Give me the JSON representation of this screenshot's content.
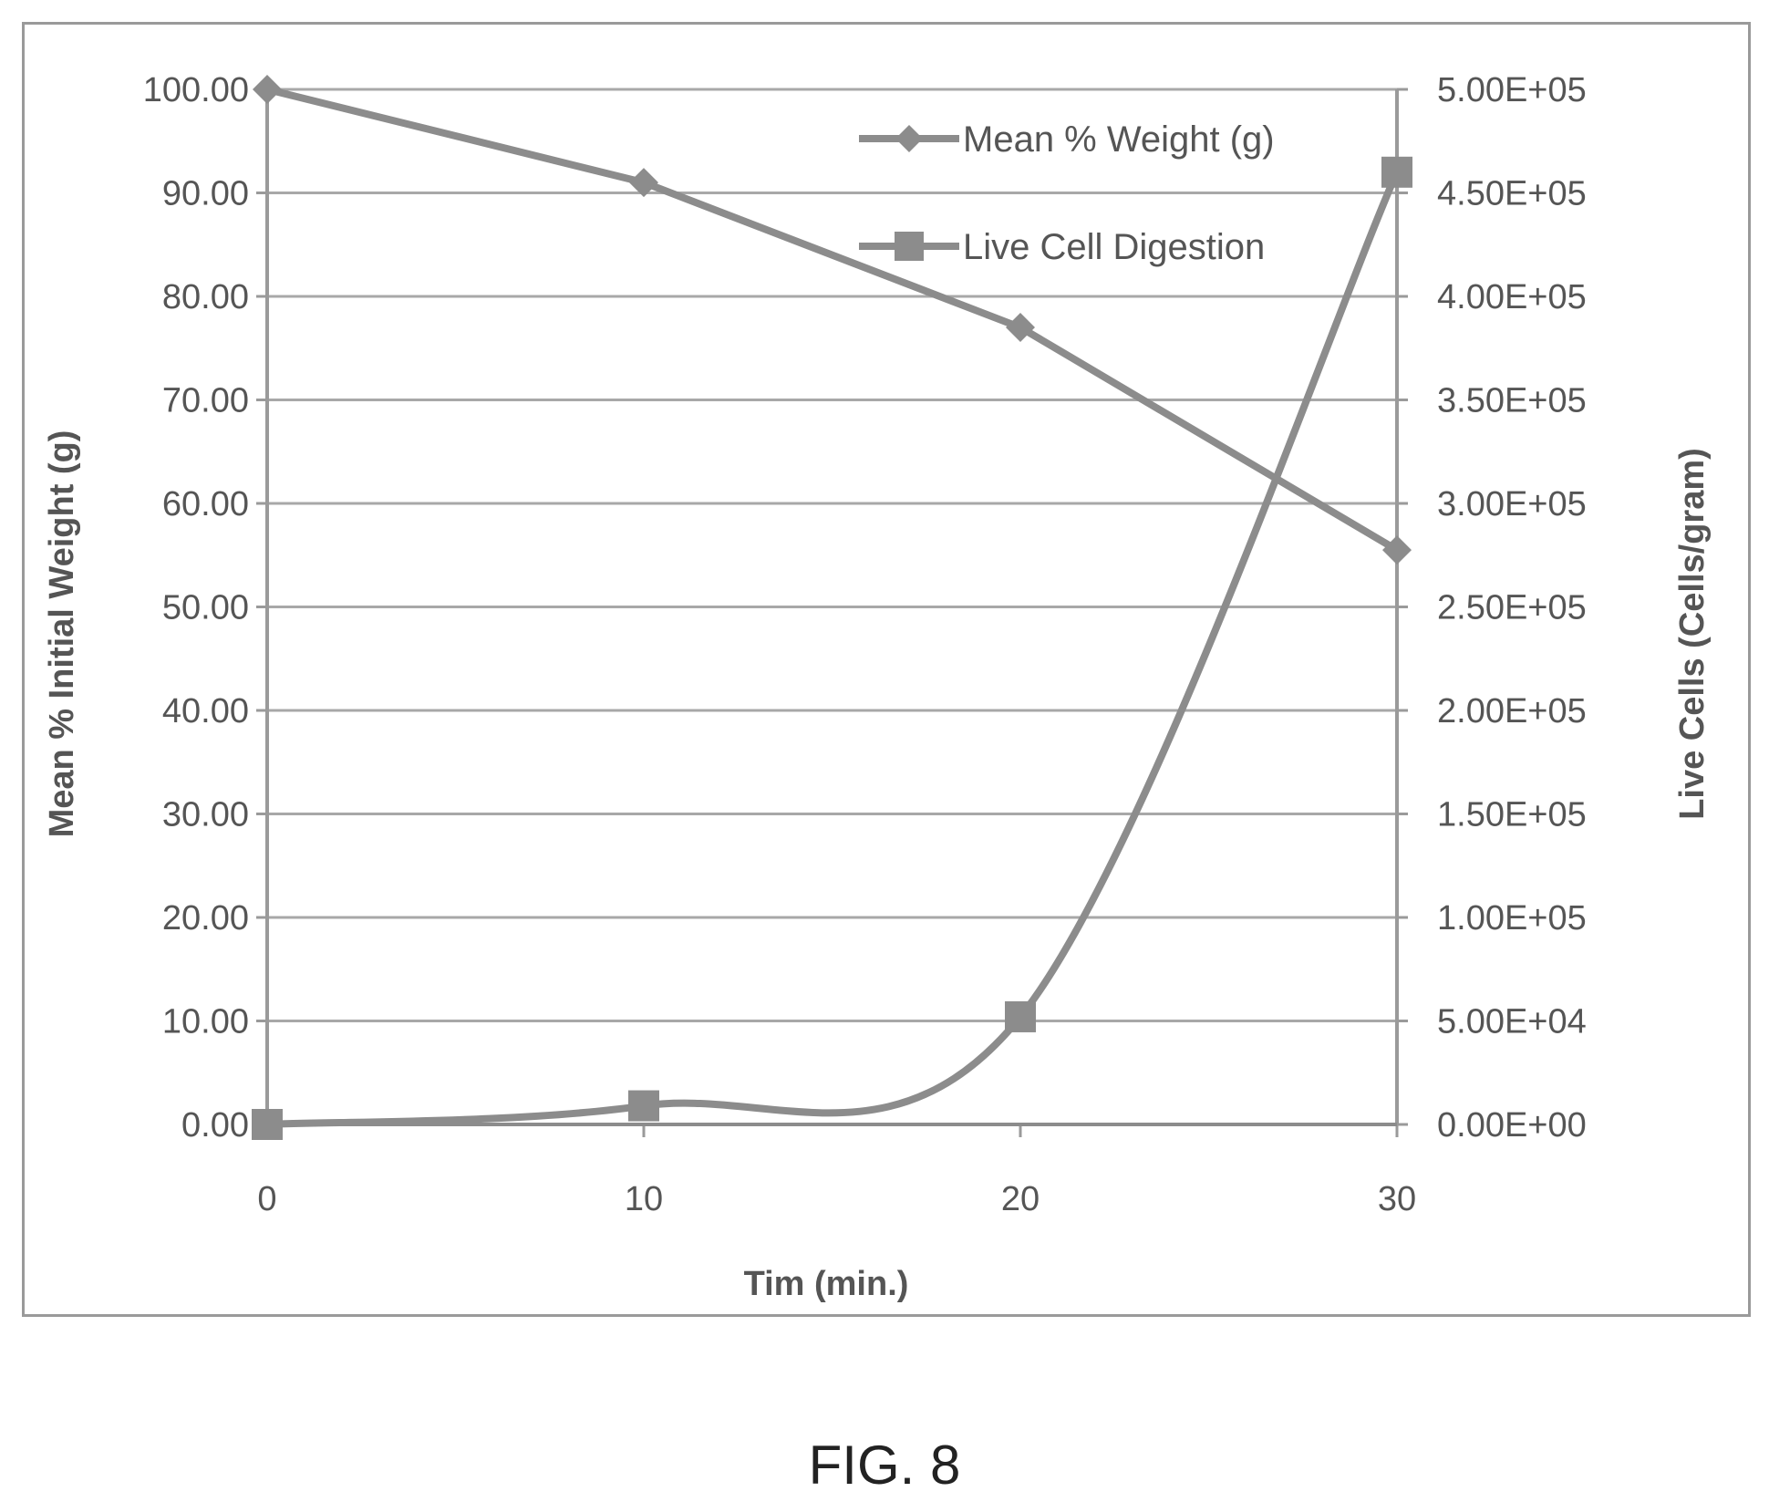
{
  "figure": {
    "caption": "FIG. 8"
  },
  "chart_data": {
    "type": "line",
    "title": "",
    "xlabel": "Tim (min.)",
    "ylabel": "Mean % Initial Weight (g)",
    "y2label": "Live Cells (Cells/gram)",
    "x": [
      0,
      10,
      20,
      30
    ],
    "xlim": [
      0,
      30
    ],
    "xticks": [
      0,
      10,
      20,
      30
    ],
    "ylim": [
      0,
      100
    ],
    "yticks": [
      0,
      10,
      20,
      30,
      40,
      50,
      60,
      70,
      80,
      90,
      100
    ],
    "ytick_labels": [
      "0.00",
      "10.00",
      "20.00",
      "30.00",
      "40.00",
      "50.00",
      "60.00",
      "70.00",
      "80.00",
      "90.00",
      "100.00"
    ],
    "y2lim": [
      0,
      500000
    ],
    "y2ticks": [
      0,
      50000,
      100000,
      150000,
      200000,
      250000,
      300000,
      350000,
      400000,
      450000,
      500000
    ],
    "y2tick_labels": [
      "0.00E+00",
      "5.00E+04",
      "1.00E+05",
      "1.50E+05",
      "2.00E+05",
      "2.50E+05",
      "3.00E+05",
      "3.50E+05",
      "4.00E+05",
      "4.50E+05",
      "5.00E+05"
    ],
    "grid": true,
    "legend_position": "top-right",
    "series": [
      {
        "name": "Mean % Weight (g)",
        "axis": "left",
        "marker": "diamond",
        "values": [
          100,
          91,
          77,
          55.5
        ],
        "color": "#8c8c8c"
      },
      {
        "name": "Live Cell Digestion",
        "axis": "right",
        "marker": "square",
        "smooth": true,
        "values": [
          0,
          9000,
          52000,
          460000
        ],
        "color": "#8c8c8c"
      }
    ]
  }
}
